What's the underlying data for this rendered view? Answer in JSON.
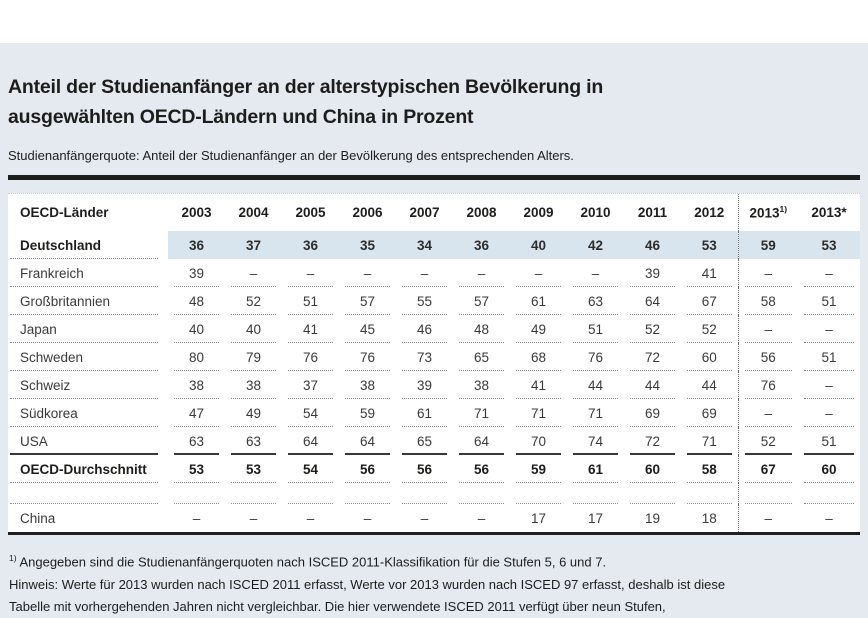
{
  "header": {
    "title_line1": "Anteil der Studienanfänger an der alterstypischen Bevölkerung in",
    "title_line2": "ausgewählten OECD-Ländern und China in Prozent",
    "subtitle": "Studienanfängerquote: Anteil der Studienanfänger an der Bevölkerung des entsprechenden Alters."
  },
  "table": {
    "corner_label": "OECD-Länder",
    "year_columns": [
      "2003",
      "2004",
      "2005",
      "2006",
      "2007",
      "2008",
      "2009",
      "2010",
      "2011",
      "2012"
    ],
    "col_2013_fn": {
      "base": "2013",
      "sup": "1)"
    },
    "col_2013_star": "2013*",
    "rows": [
      {
        "label": "Deutschland",
        "highlight": true,
        "values": [
          "36",
          "37",
          "36",
          "35",
          "34",
          "36",
          "40",
          "42",
          "46",
          "53",
          "59",
          "53"
        ]
      },
      {
        "label": "Frankreich",
        "values": [
          "39",
          "–",
          "–",
          "–",
          "–",
          "–",
          "–",
          "–",
          "39",
          "41",
          "–",
          "–"
        ]
      },
      {
        "label": "Großbritannien",
        "values": [
          "48",
          "52",
          "51",
          "57",
          "55",
          "57",
          "61",
          "63",
          "64",
          "67",
          "58",
          "51"
        ]
      },
      {
        "label": "Japan",
        "values": [
          "40",
          "40",
          "41",
          "45",
          "46",
          "48",
          "49",
          "51",
          "52",
          "52",
          "–",
          "–"
        ]
      },
      {
        "label": "Schweden",
        "values": [
          "80",
          "79",
          "76",
          "76",
          "73",
          "65",
          "68",
          "76",
          "72",
          "60",
          "56",
          "51"
        ]
      },
      {
        "label": "Schweiz",
        "values": [
          "38",
          "38",
          "37",
          "38",
          "39",
          "38",
          "41",
          "44",
          "44",
          "44",
          "76",
          "–"
        ]
      },
      {
        "label": "Südkorea",
        "values": [
          "47",
          "49",
          "54",
          "59",
          "61",
          "71",
          "71",
          "71",
          "69",
          "69",
          "–",
          "–"
        ]
      },
      {
        "label": "USA",
        "values": [
          "63",
          "63",
          "64",
          "64",
          "65",
          "64",
          "70",
          "74",
          "72",
          "71",
          "52",
          "51"
        ]
      },
      {
        "label": "OECD-Durchschnitt",
        "bold": true,
        "values": [
          "53",
          "53",
          "54",
          "56",
          "56",
          "56",
          "59",
          "61",
          "60",
          "58",
          "67",
          "60"
        ]
      },
      {
        "label": "",
        "spacer": true,
        "values": [
          "",
          "",
          "",
          "",
          "",
          "",
          "",
          "",
          "",
          "",
          "",
          ""
        ]
      },
      {
        "label": "China",
        "values": [
          "–",
          "–",
          "–",
          "–",
          "–",
          "–",
          "17",
          "17",
          "19",
          "18",
          "–",
          "–"
        ]
      }
    ]
  },
  "footnotes": {
    "fn1_sup": "1)",
    "fn1_text": " Angegeben sind die Studienanfängerquoten nach ISCED 2011-Klassifikation für die Stufen 5, 6 und 7.",
    "note": "Hinweis: Werte für 2013 wurden nach ISCED 2011 erfasst, Werte vor 2013 wurden nach ISCED 97 erfasst, deshalb ist diese Tabelle mit vorhergehenden Jahren nicht vergleichbar. Die hier verwendete ISCED 2011 verfügt über neun Stufen,"
  },
  "colors": {
    "panel_bg": "#e5eaf0",
    "highlight_row_bg": "#d9e5ee",
    "divider_bar": "#1d1d1b"
  },
  "chart_data": {
    "type": "table",
    "title": "Anteil der Studienanfänger an der alterstypischen Bevölkerung in ausgewählten OECD-Ländern und China in Prozent",
    "subtitle": "Studienanfängerquote: Anteil der Studienanfänger an der Bevölkerung des entsprechenden Alters.",
    "categories": [
      "2003",
      "2004",
      "2005",
      "2006",
      "2007",
      "2008",
      "2009",
      "2010",
      "2011",
      "2012",
      "2013 (ISCED 2011)",
      "2013*"
    ],
    "series": [
      {
        "name": "Deutschland",
        "values": [
          36,
          37,
          36,
          35,
          34,
          36,
          40,
          42,
          46,
          53,
          59,
          53
        ]
      },
      {
        "name": "Frankreich",
        "values": [
          39,
          null,
          null,
          null,
          null,
          null,
          null,
          null,
          39,
          41,
          null,
          null
        ]
      },
      {
        "name": "Großbritannien",
        "values": [
          48,
          52,
          51,
          57,
          55,
          57,
          61,
          63,
          64,
          67,
          58,
          51
        ]
      },
      {
        "name": "Japan",
        "values": [
          40,
          40,
          41,
          45,
          46,
          48,
          49,
          51,
          52,
          52,
          null,
          null
        ]
      },
      {
        "name": "Schweden",
        "values": [
          80,
          79,
          76,
          76,
          73,
          65,
          68,
          76,
          72,
          60,
          56,
          51
        ]
      },
      {
        "name": "Schweiz",
        "values": [
          38,
          38,
          37,
          38,
          39,
          38,
          41,
          44,
          44,
          44,
          76,
          null
        ]
      },
      {
        "name": "Südkorea",
        "values": [
          47,
          49,
          54,
          59,
          61,
          71,
          71,
          71,
          69,
          69,
          null,
          null
        ]
      },
      {
        "name": "USA",
        "values": [
          63,
          63,
          64,
          64,
          65,
          64,
          70,
          74,
          72,
          71,
          52,
          51
        ]
      },
      {
        "name": "OECD-Durchschnitt",
        "values": [
          53,
          53,
          54,
          56,
          56,
          56,
          59,
          61,
          60,
          58,
          67,
          60
        ]
      },
      {
        "name": "China",
        "values": [
          null,
          null,
          null,
          null,
          null,
          null,
          17,
          17,
          19,
          18,
          null,
          null
        ]
      }
    ],
    "unit": "percent",
    "notes": "Werte 2013 nach ISCED 2011, frühere Jahre nach ISCED 97; nicht vergleichbar."
  }
}
